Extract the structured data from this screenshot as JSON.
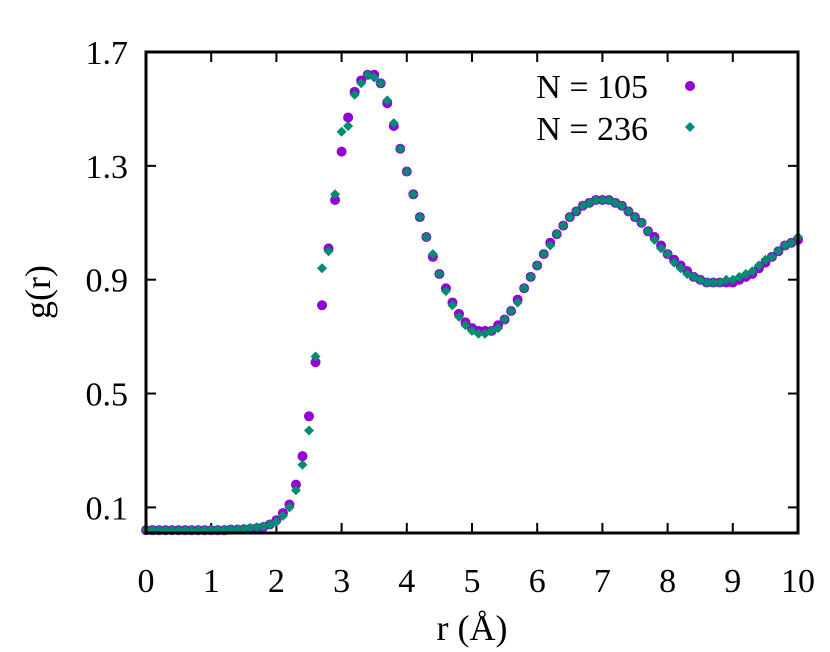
{
  "chart_data": {
    "type": "scatter",
    "title": "",
    "xlabel": "r (Å)",
    "ylabel": "g(r)",
    "xlim": [
      0,
      10
    ],
    "ylim": [
      0.01,
      1.7
    ],
    "x_ticks": [
      "0",
      "1",
      "2",
      "3",
      "4",
      "5",
      "6",
      "7",
      "8",
      "9",
      "10"
    ],
    "y_ticks": [
      "0.1",
      "0.5",
      "0.9",
      "1.3",
      "1.7"
    ],
    "legend_position": "top-right",
    "grid": false,
    "series": [
      {
        "name": "N = 105",
        "marker": "circle",
        "color": "#9400D3",
        "points": [
          [
            0.0,
            0.02
          ],
          [
            0.1,
            0.02
          ],
          [
            0.2,
            0.02
          ],
          [
            0.3,
            0.02
          ],
          [
            0.4,
            0.02
          ],
          [
            0.5,
            0.02
          ],
          [
            0.6,
            0.02
          ],
          [
            0.7,
            0.02
          ],
          [
            0.8,
            0.02
          ],
          [
            0.9,
            0.02
          ],
          [
            1.0,
            0.02
          ],
          [
            1.1,
            0.02
          ],
          [
            1.2,
            0.02
          ],
          [
            1.3,
            0.022
          ],
          [
            1.4,
            0.022
          ],
          [
            1.5,
            0.023
          ],
          [
            1.6,
            0.025
          ],
          [
            1.7,
            0.027
          ],
          [
            1.8,
            0.031
          ],
          [
            1.9,
            0.04
          ],
          [
            2.0,
            0.055
          ],
          [
            2.1,
            0.08
          ],
          [
            2.2,
            0.11
          ],
          [
            2.3,
            0.18
          ],
          [
            2.4,
            0.28
          ],
          [
            2.5,
            0.42
          ],
          [
            2.6,
            0.61
          ],
          [
            2.7,
            0.81
          ],
          [
            2.8,
            1.01
          ],
          [
            2.9,
            1.18
          ],
          [
            3.0,
            1.35
          ],
          [
            3.1,
            1.47
          ],
          [
            3.2,
            1.56
          ],
          [
            3.3,
            1.6
          ],
          [
            3.4,
            1.62
          ],
          [
            3.5,
            1.62
          ],
          [
            3.6,
            1.59
          ],
          [
            3.7,
            1.52
          ],
          [
            3.8,
            1.44
          ],
          [
            3.9,
            1.36
          ],
          [
            4.0,
            1.28
          ],
          [
            4.1,
            1.2
          ],
          [
            4.2,
            1.12
          ],
          [
            4.3,
            1.05
          ],
          [
            4.4,
            0.98
          ],
          [
            4.5,
            0.92
          ],
          [
            4.6,
            0.87
          ],
          [
            4.7,
            0.82
          ],
          [
            4.8,
            0.78
          ],
          [
            4.9,
            0.75
          ],
          [
            5.0,
            0.73
          ],
          [
            5.1,
            0.72
          ],
          [
            5.2,
            0.72
          ],
          [
            5.3,
            0.72
          ],
          [
            5.4,
            0.74
          ],
          [
            5.5,
            0.76
          ],
          [
            5.6,
            0.79
          ],
          [
            5.7,
            0.83
          ],
          [
            5.8,
            0.87
          ],
          [
            5.9,
            0.91
          ],
          [
            6.0,
            0.95
          ],
          [
            6.1,
            0.99
          ],
          [
            6.2,
            1.03
          ],
          [
            6.3,
            1.06
          ],
          [
            6.4,
            1.09
          ],
          [
            6.5,
            1.12
          ],
          [
            6.6,
            1.14
          ],
          [
            6.7,
            1.16
          ],
          [
            6.8,
            1.17
          ],
          [
            6.9,
            1.18
          ],
          [
            7.0,
            1.18
          ],
          [
            7.1,
            1.18
          ],
          [
            7.2,
            1.17
          ],
          [
            7.3,
            1.16
          ],
          [
            7.4,
            1.14
          ],
          [
            7.5,
            1.12
          ],
          [
            7.6,
            1.1
          ],
          [
            7.7,
            1.07
          ],
          [
            7.8,
            1.05
          ],
          [
            7.9,
            1.02
          ],
          [
            8.0,
            0.99
          ],
          [
            8.1,
            0.97
          ],
          [
            8.2,
            0.95
          ],
          [
            8.3,
            0.93
          ],
          [
            8.4,
            0.91
          ],
          [
            8.5,
            0.9
          ],
          [
            8.6,
            0.89
          ],
          [
            8.7,
            0.89
          ],
          [
            8.8,
            0.89
          ],
          [
            8.9,
            0.89
          ],
          [
            9.0,
            0.89
          ],
          [
            9.1,
            0.9
          ],
          [
            9.2,
            0.91
          ],
          [
            9.3,
            0.92
          ],
          [
            9.4,
            0.94
          ],
          [
            9.5,
            0.96
          ],
          [
            9.6,
            0.98
          ],
          [
            9.7,
            1.0
          ],
          [
            9.8,
            1.02
          ],
          [
            9.9,
            1.03
          ],
          [
            10.0,
            1.04
          ]
        ]
      },
      {
        "name": "N = 236",
        "marker": "diamond",
        "color": "#008B74",
        "points": [
          [
            0.0,
            0.02
          ],
          [
            0.1,
            0.02
          ],
          [
            0.2,
            0.02
          ],
          [
            0.3,
            0.02
          ],
          [
            0.4,
            0.02
          ],
          [
            0.5,
            0.02
          ],
          [
            0.6,
            0.02
          ],
          [
            0.7,
            0.02
          ],
          [
            0.8,
            0.02
          ],
          [
            0.9,
            0.02
          ],
          [
            1.0,
            0.021
          ],
          [
            1.1,
            0.021
          ],
          [
            1.2,
            0.022
          ],
          [
            1.3,
            0.023
          ],
          [
            1.4,
            0.024
          ],
          [
            1.5,
            0.026
          ],
          [
            1.6,
            0.028
          ],
          [
            1.7,
            0.03
          ],
          [
            1.8,
            0.033
          ],
          [
            1.9,
            0.04
          ],
          [
            2.0,
            0.05
          ],
          [
            2.1,
            0.07
          ],
          [
            2.2,
            0.1
          ],
          [
            2.3,
            0.16
          ],
          [
            2.4,
            0.25
          ],
          [
            2.5,
            0.37
          ],
          [
            2.6,
            0.63
          ],
          [
            2.7,
            0.94
          ],
          [
            2.8,
            1.0
          ],
          [
            2.9,
            1.2
          ],
          [
            3.0,
            1.42
          ],
          [
            3.1,
            1.44
          ],
          [
            3.2,
            1.55
          ],
          [
            3.3,
            1.59
          ],
          [
            3.4,
            1.62
          ],
          [
            3.5,
            1.61
          ],
          [
            3.6,
            1.59
          ],
          [
            3.7,
            1.53
          ],
          [
            3.8,
            1.45
          ],
          [
            3.9,
            1.36
          ],
          [
            4.0,
            1.28
          ],
          [
            4.1,
            1.2
          ],
          [
            4.2,
            1.12
          ],
          [
            4.3,
            1.05
          ],
          [
            4.4,
            0.99
          ],
          [
            4.5,
            0.92
          ],
          [
            4.6,
            0.86
          ],
          [
            4.7,
            0.81
          ],
          [
            4.8,
            0.77
          ],
          [
            4.9,
            0.74
          ],
          [
            5.0,
            0.72
          ],
          [
            5.1,
            0.71
          ],
          [
            5.2,
            0.71
          ],
          [
            5.3,
            0.72
          ],
          [
            5.4,
            0.73
          ],
          [
            5.5,
            0.76
          ],
          [
            5.6,
            0.79
          ],
          [
            5.7,
            0.82
          ],
          [
            5.8,
            0.87
          ],
          [
            5.9,
            0.91
          ],
          [
            6.0,
            0.95
          ],
          [
            6.1,
            0.99
          ],
          [
            6.2,
            1.02
          ],
          [
            6.3,
            1.06
          ],
          [
            6.4,
            1.09
          ],
          [
            6.5,
            1.12
          ],
          [
            6.6,
            1.14
          ],
          [
            6.7,
            1.16
          ],
          [
            6.8,
            1.17
          ],
          [
            6.9,
            1.18
          ],
          [
            7.0,
            1.18
          ],
          [
            7.1,
            1.18
          ],
          [
            7.2,
            1.17
          ],
          [
            7.3,
            1.16
          ],
          [
            7.4,
            1.14
          ],
          [
            7.5,
            1.12
          ],
          [
            7.6,
            1.1
          ],
          [
            7.7,
            1.07
          ],
          [
            7.8,
            1.04
          ],
          [
            7.9,
            1.01
          ],
          [
            8.0,
            0.99
          ],
          [
            8.1,
            0.96
          ],
          [
            8.2,
            0.94
          ],
          [
            8.3,
            0.92
          ],
          [
            8.4,
            0.91
          ],
          [
            8.5,
            0.9
          ],
          [
            8.6,
            0.89
          ],
          [
            8.7,
            0.89
          ],
          [
            8.8,
            0.89
          ],
          [
            8.9,
            0.9
          ],
          [
            9.0,
            0.9
          ],
          [
            9.1,
            0.91
          ],
          [
            9.2,
            0.92
          ],
          [
            9.3,
            0.93
          ],
          [
            9.4,
            0.95
          ],
          [
            9.5,
            0.97
          ],
          [
            9.6,
            0.98
          ],
          [
            9.7,
            1.0
          ],
          [
            9.8,
            1.02
          ],
          [
            9.9,
            1.03
          ],
          [
            10.0,
            1.05
          ]
        ]
      }
    ]
  }
}
